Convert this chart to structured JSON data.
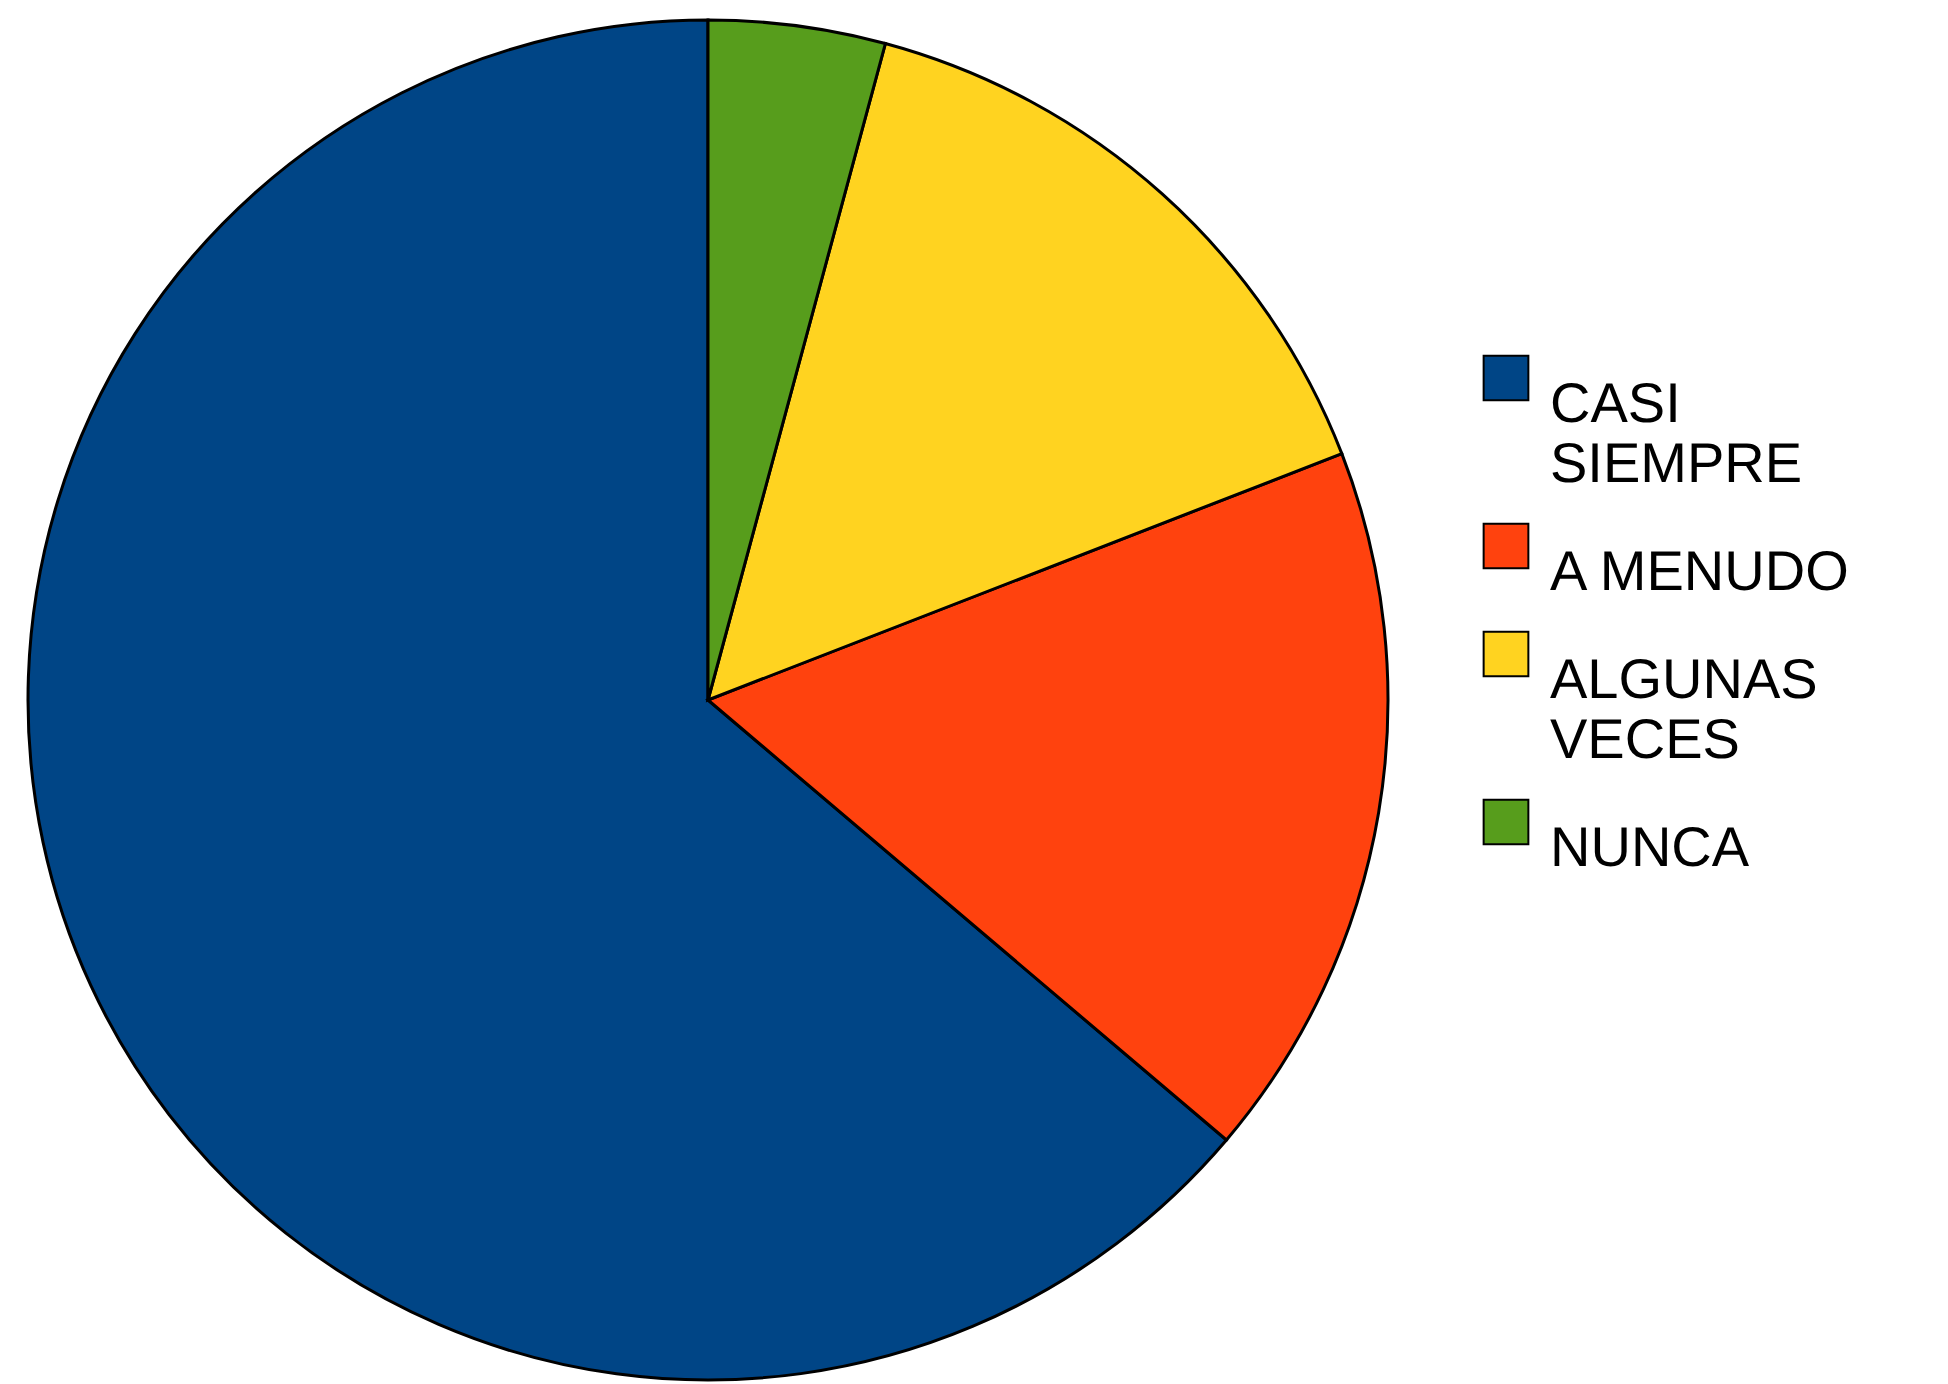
{
  "chart_data": {
    "type": "pie",
    "categories": [
      "CASI SIEMPRE",
      "A MENUDO",
      "ALGUNAS VECES",
      "NUNCA"
    ],
    "values": [
      63.8,
      17.1,
      14.9,
      4.2
    ],
    "colors": [
      "#004586",
      "#ff420e",
      "#ffd320",
      "#579d1c"
    ],
    "legend": "right"
  }
}
